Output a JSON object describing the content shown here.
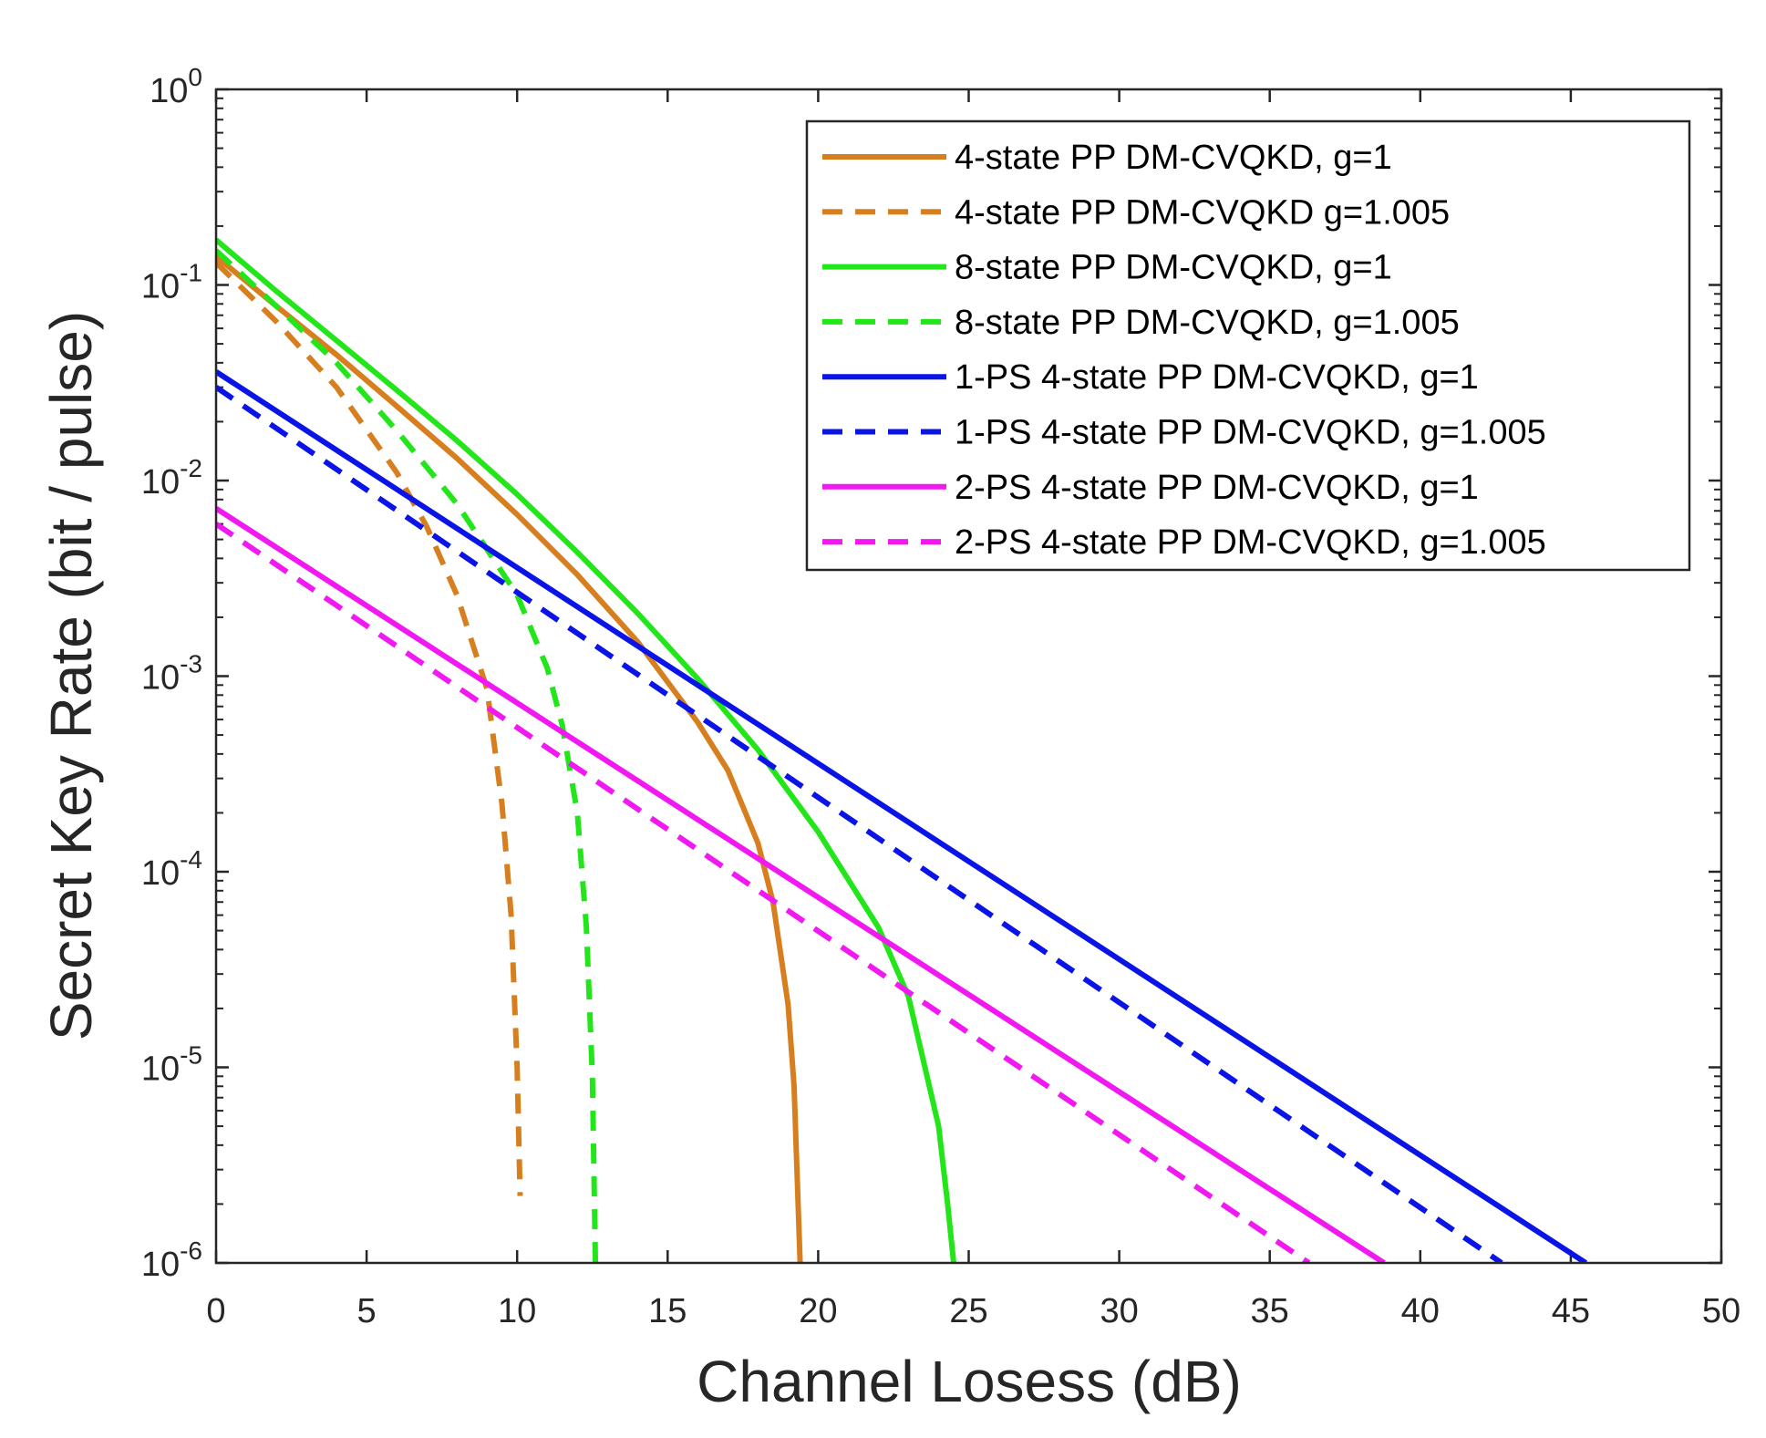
{
  "chart_data": {
    "type": "line",
    "title": "",
    "xlabel": "Channel Losess (dB)",
    "ylabel": "Secret Key Rate (bit / pulse)",
    "xlim": [
      0,
      50
    ],
    "ylim": [
      1e-06,
      1
    ],
    "yscale": "log",
    "x_ticks": [
      0,
      5,
      10,
      15,
      20,
      25,
      30,
      35,
      40,
      45,
      50
    ],
    "x_tick_labels": [
      "0",
      "5",
      "10",
      "15",
      "20",
      "25",
      "30",
      "35",
      "40",
      "45",
      "50"
    ],
    "y_ticks": [
      {
        "value": 1.0,
        "base": "10",
        "exp": "0"
      },
      {
        "value": 0.1,
        "base": "10",
        "exp": "-1"
      },
      {
        "value": 0.01,
        "base": "10",
        "exp": "-2"
      },
      {
        "value": 0.001,
        "base": "10",
        "exp": "-3"
      },
      {
        "value": 0.0001,
        "base": "10",
        "exp": "-4"
      },
      {
        "value": 1e-05,
        "base": "10",
        "exp": "-5"
      },
      {
        "value": 1e-06,
        "base": "10",
        "exp": "-6"
      }
    ],
    "grid": false,
    "legend_position": "top-right",
    "series": [
      {
        "name": "4-state PP DM-CVQKD, g=1",
        "color": "#D77F1F",
        "dash": "solid",
        "x": [
          0,
          2,
          4,
          6,
          8,
          10,
          12,
          14,
          16,
          17,
          18,
          18.5,
          19,
          19.2,
          19.4
        ],
        "y": [
          0.14,
          0.078,
          0.044,
          0.024,
          0.013,
          0.0067,
          0.0033,
          0.0015,
          0.00058,
          0.00033,
          0.00014,
          7e-05,
          2.1e-05,
          8e-06,
          1e-06
        ]
      },
      {
        "name": "4-state PP DM-CVQKD g=1.005",
        "color": "#D77F1F",
        "dash": "dashed",
        "x": [
          0,
          2,
          4,
          6,
          7,
          8,
          9,
          9.5,
          9.8,
          10,
          10.1
        ],
        "y": [
          0.13,
          0.065,
          0.03,
          0.011,
          0.0058,
          0.0026,
          0.00086,
          0.00022,
          6e-05,
          1e-05,
          2.2e-06
        ]
      },
      {
        "name": "8-state PP DM-CVQKD, g=1",
        "color": "#22E61A",
        "dash": "solid",
        "x": [
          0,
          2,
          4,
          6,
          8,
          10,
          12,
          14,
          16,
          18,
          20,
          22,
          23,
          24,
          24.3,
          24.5
        ],
        "y": [
          0.17,
          0.093,
          0.052,
          0.029,
          0.016,
          0.0085,
          0.0043,
          0.0021,
          0.00097,
          0.00042,
          0.00016,
          5.2e-05,
          2.3e-05,
          5e-06,
          2e-06,
          1e-06
        ]
      },
      {
        "name": "8-state PP DM-CVQKD, g=1.005",
        "color": "#22E61A",
        "dash": "dashed",
        "x": [
          0,
          2,
          4,
          6,
          8,
          10,
          11,
          11.5,
          12,
          12.3,
          12.5,
          12.6
        ],
        "y": [
          0.15,
          0.078,
          0.04,
          0.018,
          0.0076,
          0.0026,
          0.0011,
          0.00056,
          0.0002,
          5.2e-05,
          9e-06,
          1e-06
        ]
      },
      {
        "name": "1-PS 4-state PP DM-CVQKD, g=1",
        "color": "#0A14E6",
        "dash": "solid",
        "x": [
          0,
          45.5
        ],
        "y": [
          0.036,
          1e-06
        ]
      },
      {
        "name": "1-PS 4-state PP DM-CVQKD, g=1.005",
        "color": "#0A14E6",
        "dash": "dashed",
        "x": [
          0,
          42.7
        ],
        "y": [
          0.03,
          1e-06
        ]
      },
      {
        "name": "2-PS 4-state PP DM-CVQKD, g=1",
        "color": "#F218F2",
        "dash": "solid",
        "x": [
          0,
          38.8
        ],
        "y": [
          0.0072,
          1e-06
        ]
      },
      {
        "name": "2-PS 4-state PP DM-CVQKD, g=1.005",
        "color": "#F218F2",
        "dash": "dashed",
        "x": [
          0,
          36.3
        ],
        "y": [
          0.006,
          1e-06
        ]
      }
    ]
  }
}
